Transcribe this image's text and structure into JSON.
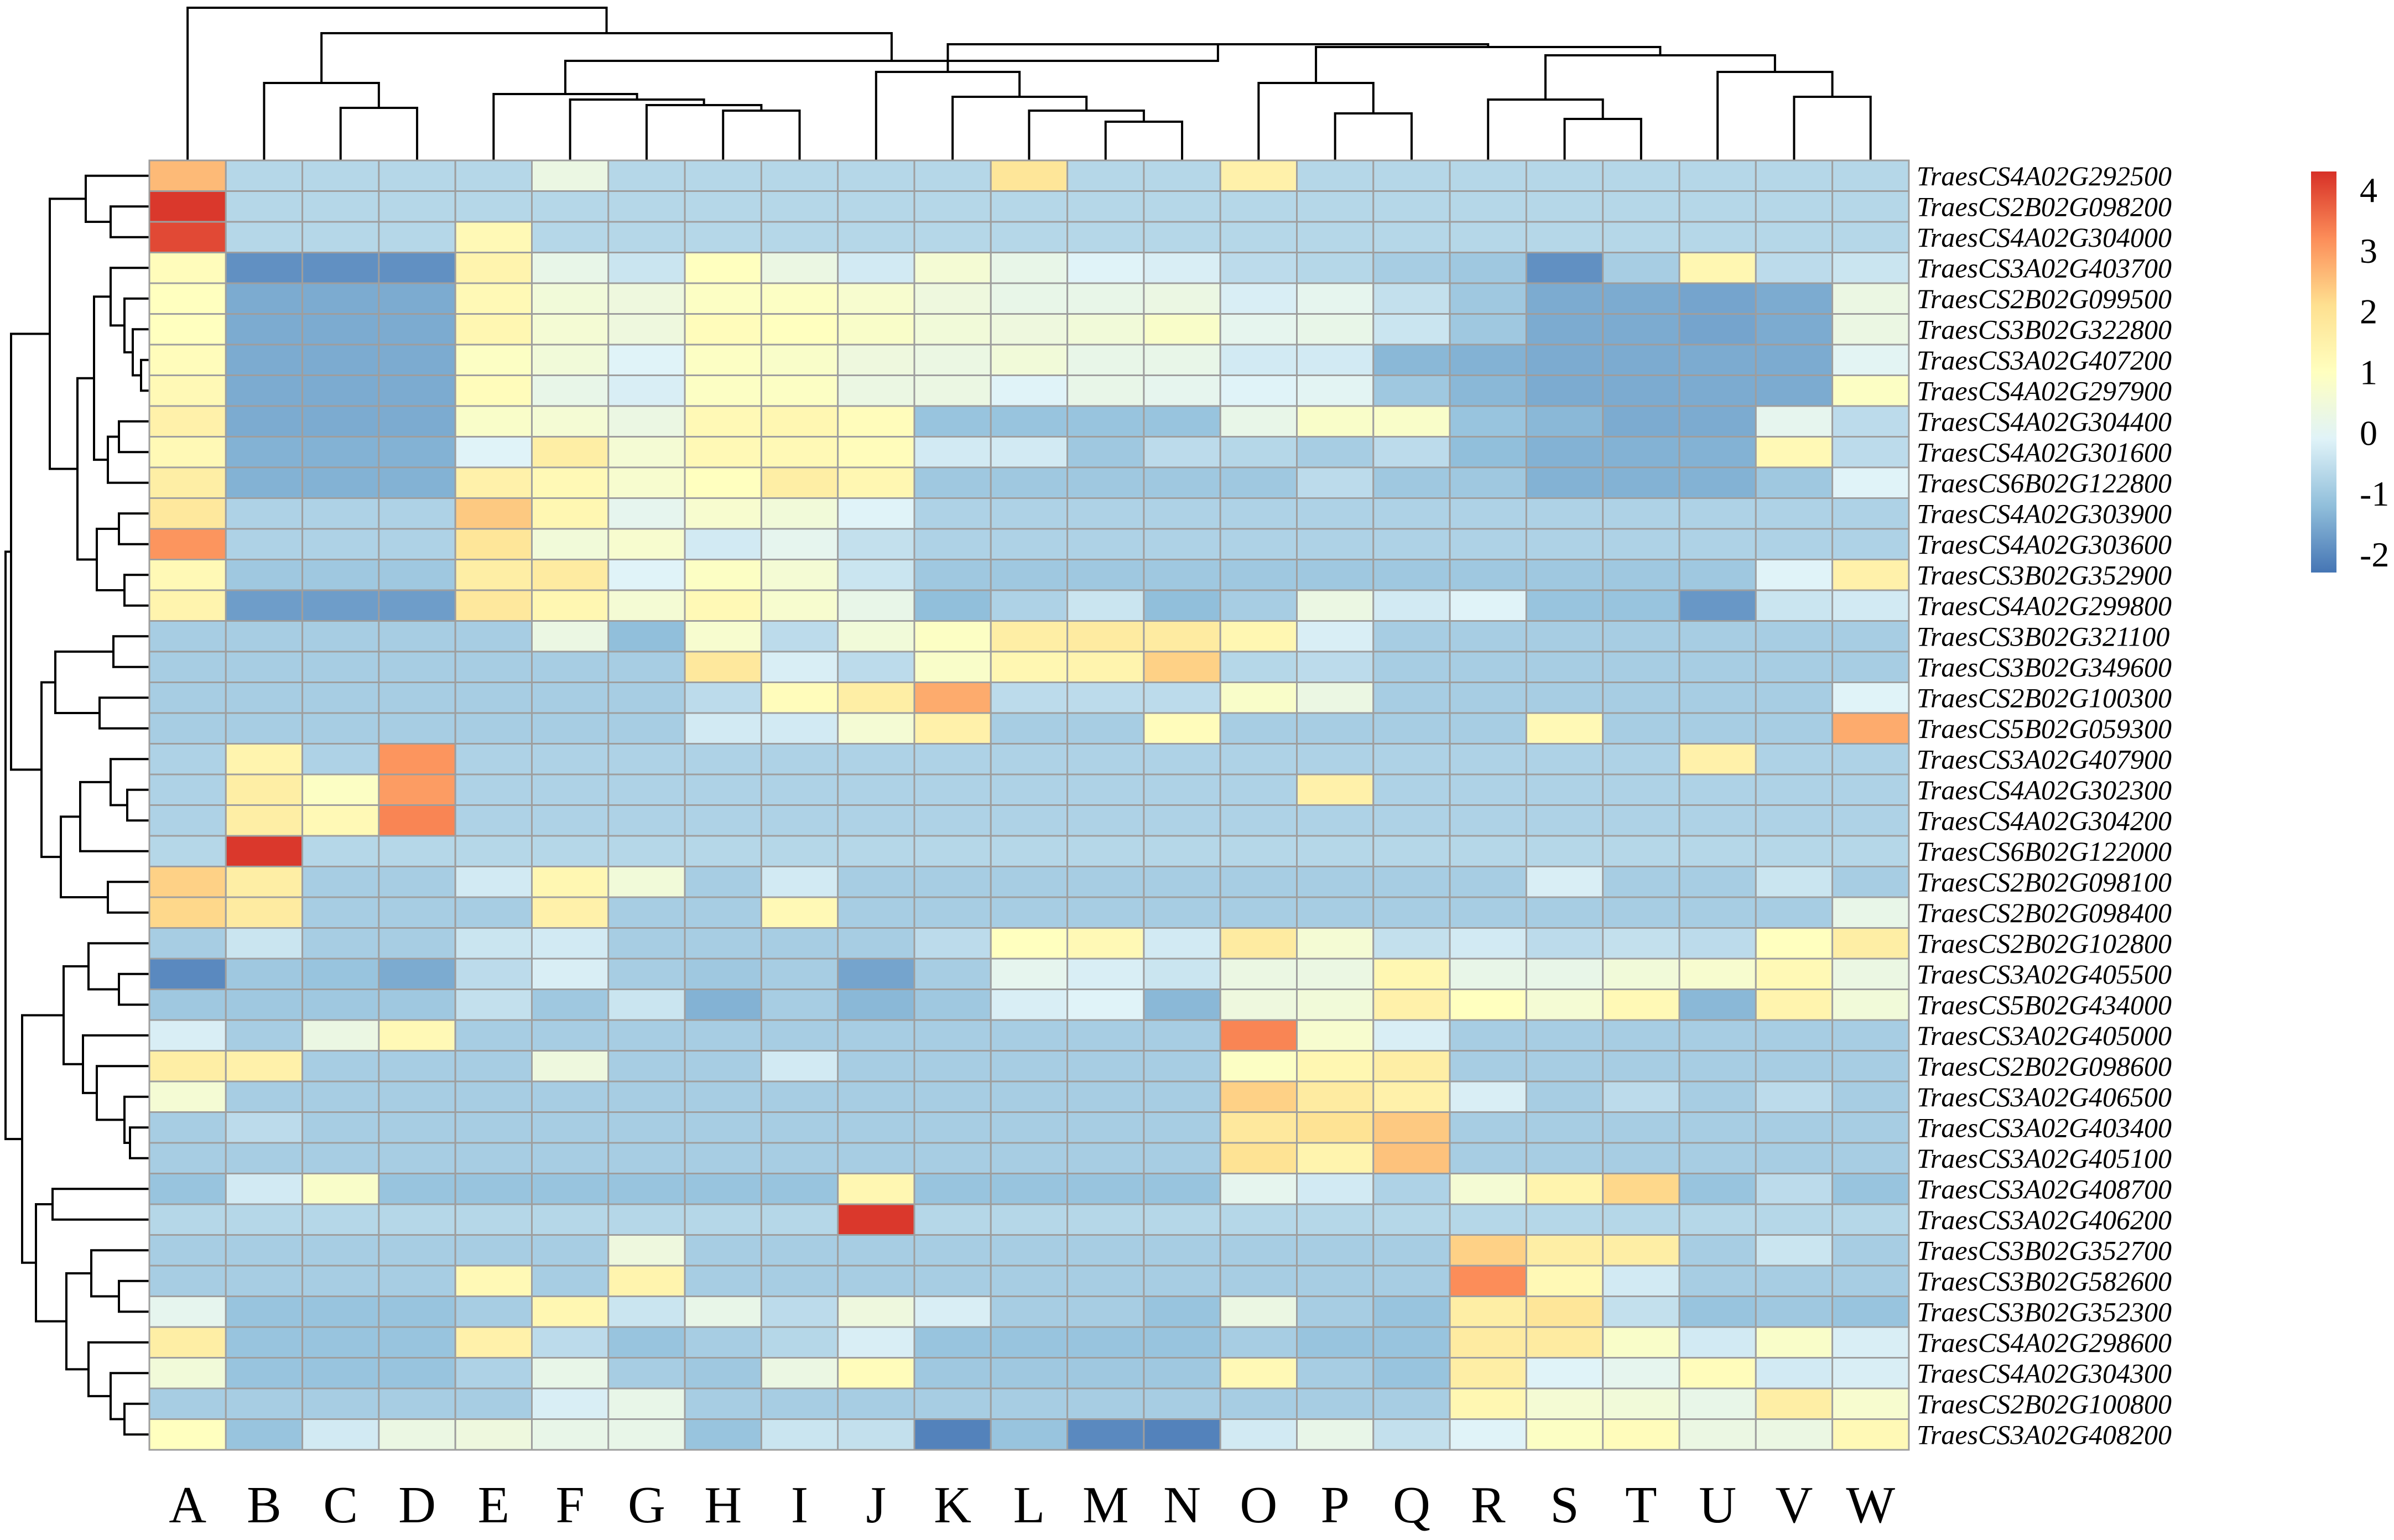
{
  "chart_data": {
    "type": "heatmap",
    "columns": [
      "A",
      "B",
      "C",
      "D",
      "E",
      "F",
      "G",
      "H",
      "I",
      "J",
      "K",
      "L",
      "M",
      "N",
      "O",
      "P",
      "Q",
      "R",
      "S",
      "T",
      "U",
      "V",
      "W"
    ],
    "rows": [
      "TraesCS4A02G292500",
      "TraesCS2B02G098200",
      "TraesCS4A02G304000",
      "TraesCS3A02G403700",
      "TraesCS2B02G099500",
      "TraesCS3B02G322800",
      "TraesCS3A02G407200",
      "TraesCS4A02G297900",
      "TraesCS4A02G304400",
      "TraesCS4A02G301600",
      "TraesCS6B02G122800",
      "TraesCS4A02G303900",
      "TraesCS4A02G303600",
      "TraesCS3B02G352900",
      "TraesCS4A02G299800",
      "TraesCS3B02G321100",
      "TraesCS3B02G349600",
      "TraesCS2B02G100300",
      "TraesCS5B02G059300",
      "TraesCS3A02G407900",
      "TraesCS4A02G302300",
      "TraesCS4A02G304200",
      "TraesCS6B02G122000",
      "TraesCS2B02G098100",
      "TraesCS2B02G098400",
      "TraesCS2B02G102800",
      "TraesCS3A02G405500",
      "TraesCS5B02G434000",
      "TraesCS3A02G405000",
      "TraesCS2B02G098600",
      "TraesCS3A02G406500",
      "TraesCS3A02G403400",
      "TraesCS3A02G405100",
      "TraesCS3A02G408700",
      "TraesCS3A02G406200",
      "TraesCS3B02G352700",
      "TraesCS3B02G582600",
      "TraesCS3B02G352300",
      "TraesCS4A02G298600",
      "TraesCS4A02G304300",
      "TraesCS2B02G100800",
      "TraesCS3A02G408200"
    ],
    "values": [
      [
        2.6,
        -0.7,
        -0.7,
        -0.7,
        -0.7,
        0.3,
        -0.7,
        -0.7,
        -0.7,
        -0.7,
        -0.7,
        1.9,
        -0.7,
        -0.7,
        1.5,
        -0.7,
        -0.7,
        -0.7,
        -0.7,
        -0.7,
        -0.7,
        -0.7,
        -0.7
      ],
      [
        4.2,
        -0.7,
        -0.7,
        -0.7,
        -0.7,
        -0.7,
        -0.7,
        -0.7,
        -0.7,
        -0.7,
        -0.7,
        -0.7,
        -0.7,
        -0.7,
        -0.7,
        -0.7,
        -0.7,
        -0.7,
        -0.7,
        -0.7,
        -0.7,
        -0.7,
        -0.7
      ],
      [
        4.0,
        -0.7,
        -0.7,
        -0.7,
        1.2,
        -0.7,
        -0.7,
        -0.7,
        -0.7,
        -0.7,
        -0.7,
        -0.7,
        -0.7,
        -0.7,
        -0.7,
        -0.7,
        -0.7,
        -0.7,
        -0.7,
        -0.7,
        -0.7,
        -0.7,
        -0.7
      ],
      [
        1.1,
        -1.9,
        -1.9,
        -1.9,
        1.4,
        0.2,
        -0.4,
        1.0,
        0.3,
        -0.3,
        0.6,
        0.2,
        -0.1,
        -0.2,
        -0.6,
        -0.7,
        -0.9,
        -1.0,
        -1.9,
        -0.9,
        1.3,
        -0.6,
        -0.4
      ],
      [
        1.0,
        -1.5,
        -1.5,
        -1.5,
        1.2,
        0.5,
        0.4,
        0.9,
        0.9,
        0.7,
        0.4,
        0.2,
        0.2,
        0.3,
        -0.2,
        0.1,
        -0.5,
        -1.0,
        -1.5,
        -1.5,
        -1.6,
        -1.5,
        0.3
      ],
      [
        1.0,
        -1.5,
        -1.5,
        -1.5,
        1.3,
        0.6,
        0.4,
        1.1,
        1.0,
        0.8,
        0.5,
        0.4,
        0.5,
        0.8,
        0.1,
        0.2,
        -0.4,
        -1.0,
        -1.5,
        -1.5,
        -1.6,
        -1.5,
        0.3
      ],
      [
        1.1,
        -1.5,
        -1.5,
        -1.5,
        0.9,
        0.5,
        -0.1,
        0.9,
        0.8,
        0.4,
        0.3,
        0.5,
        0.2,
        0.2,
        -0.3,
        -0.3,
        -1.3,
        -1.4,
        -1.5,
        -1.5,
        -1.5,
        -1.5,
        0.0
      ],
      [
        1.2,
        -1.5,
        -1.5,
        -1.5,
        1.1,
        0.2,
        -0.2,
        0.9,
        0.9,
        0.3,
        0.3,
        -0.1,
        0.2,
        0.1,
        -0.1,
        0.0,
        -1.0,
        -1.3,
        -1.5,
        -1.5,
        -1.5,
        -1.5,
        0.9
      ],
      [
        1.5,
        -1.5,
        -1.5,
        -1.5,
        0.8,
        0.6,
        0.3,
        1.2,
        1.3,
        1.1,
        -1.1,
        -1.1,
        -1.1,
        -1.1,
        0.2,
        0.8,
        0.8,
        -1.1,
        -1.3,
        -1.5,
        -1.5,
        0.1,
        -0.6
      ],
      [
        1.2,
        -1.4,
        -1.4,
        -1.4,
        -0.1,
        1.6,
        0.6,
        1.2,
        1.2,
        1.1,
        -0.3,
        -0.3,
        -1.0,
        -0.6,
        -0.7,
        -0.9,
        -0.6,
        -1.2,
        -1.4,
        -1.4,
        -1.4,
        1.2,
        -0.6
      ],
      [
        1.6,
        -1.4,
        -1.4,
        -1.4,
        1.5,
        1.2,
        0.7,
        1.0,
        1.6,
        1.3,
        -1.0,
        -1.0,
        -1.0,
        -1.0,
        -1.0,
        -0.6,
        -1.0,
        -1.0,
        -1.4,
        -1.4,
        -1.4,
        -1.0,
        -0.1
      ],
      [
        1.8,
        -0.8,
        -0.8,
        -0.8,
        2.4,
        1.3,
        0.1,
        0.7,
        0.5,
        -0.1,
        -0.8,
        -0.8,
        -0.8,
        -0.8,
        -0.8,
        -0.8,
        -0.8,
        -0.8,
        -0.8,
        -0.8,
        -0.8,
        -0.8,
        -0.8
      ],
      [
        3.1,
        -0.8,
        -0.8,
        -0.8,
        1.9,
        0.5,
        0.7,
        -0.3,
        0.1,
        -0.5,
        -0.8,
        -0.8,
        -0.8,
        -0.8,
        -0.8,
        -0.8,
        -0.8,
        -0.8,
        -0.8,
        -0.8,
        -0.8,
        -0.8,
        -0.8
      ],
      [
        1.2,
        -1.0,
        -1.0,
        -1.0,
        1.6,
        1.7,
        -0.1,
        0.9,
        0.6,
        -0.4,
        -1.0,
        -1.0,
        -1.0,
        -1.0,
        -1.0,
        -1.0,
        -1.0,
        -1.0,
        -1.0,
        -1.0,
        -1.0,
        -0.1,
        1.5
      ],
      [
        1.4,
        -1.7,
        -1.7,
        -1.7,
        1.8,
        1.3,
        0.6,
        1.2,
        0.7,
        0.2,
        -1.2,
        -0.8,
        -0.4,
        -1.2,
        -0.9,
        0.3,
        -0.3,
        -0.1,
        -1.1,
        -1.1,
        -1.8,
        -0.4,
        -0.3
      ],
      [
        -0.9,
        -0.9,
        -0.9,
        -0.9,
        -0.9,
        0.3,
        -1.2,
        0.7,
        -0.6,
        0.5,
        0.9,
        1.6,
        1.7,
        1.7,
        1.3,
        -0.2,
        -0.9,
        -0.9,
        -0.9,
        -0.9,
        -0.9,
        -0.9,
        -0.9
      ],
      [
        -0.9,
        -0.9,
        -0.9,
        -0.9,
        -0.9,
        -0.9,
        -0.9,
        1.8,
        -0.2,
        -0.6,
        0.8,
        1.3,
        1.4,
        2.3,
        -0.7,
        -0.6,
        -0.9,
        -0.9,
        -0.9,
        -0.9,
        -0.9,
        -0.9,
        -0.9
      ],
      [
        -0.9,
        -0.9,
        -0.9,
        -0.9,
        -0.9,
        -0.9,
        -0.9,
        -0.6,
        1.1,
        1.6,
        2.8,
        -0.6,
        -0.6,
        -0.6,
        0.8,
        0.3,
        -0.9,
        -0.9,
        -0.9,
        -0.9,
        -0.9,
        -0.9,
        -0.1
      ],
      [
        -0.9,
        -0.9,
        -0.9,
        -0.9,
        -0.9,
        -0.9,
        -0.9,
        -0.3,
        -0.3,
        0.6,
        1.5,
        -0.9,
        -0.9,
        1.1,
        -0.9,
        -0.9,
        -0.9,
        -0.9,
        1.2,
        -0.9,
        -0.9,
        -0.9,
        2.8
      ],
      [
        -0.8,
        1.4,
        -0.8,
        3.1,
        -0.8,
        -0.8,
        -0.8,
        -0.8,
        -0.8,
        -0.8,
        -0.8,
        -0.8,
        -0.8,
        -0.8,
        -0.8,
        -0.8,
        -0.8,
        -0.8,
        -0.8,
        -0.8,
        1.5,
        -0.8,
        -0.8
      ],
      [
        -0.8,
        1.6,
        0.9,
        3.0,
        -0.8,
        -0.8,
        -0.8,
        -0.8,
        -0.8,
        -0.8,
        -0.8,
        -0.8,
        -0.8,
        -0.8,
        -0.8,
        1.5,
        -0.8,
        -0.8,
        -0.8,
        -0.8,
        -0.8,
        -0.8,
        -0.8
      ],
      [
        -0.8,
        1.6,
        1.2,
        3.3,
        -0.8,
        -0.8,
        -0.8,
        -0.8,
        -0.8,
        -0.8,
        -0.8,
        -0.8,
        -0.8,
        -0.8,
        -0.8,
        -0.8,
        -0.8,
        -0.8,
        -0.8,
        -0.8,
        -0.8,
        -0.8,
        -0.8
      ],
      [
        -0.7,
        4.2,
        -0.7,
        -0.7,
        -0.7,
        -0.7,
        -0.7,
        -0.7,
        -0.7,
        -0.7,
        -0.7,
        -0.7,
        -0.7,
        -0.7,
        -0.7,
        -0.7,
        -0.7,
        -0.7,
        -0.7,
        -0.7,
        -0.7,
        -0.7,
        -0.7
      ],
      [
        2.3,
        1.6,
        -0.9,
        -0.9,
        -0.3,
        1.3,
        0.5,
        -0.9,
        -0.3,
        -0.9,
        -0.9,
        -0.9,
        -0.9,
        -0.9,
        -0.9,
        -0.9,
        -0.9,
        -0.9,
        -0.2,
        -0.9,
        -0.9,
        -0.4,
        -0.9
      ],
      [
        2.2,
        1.7,
        -0.9,
        -0.9,
        -0.9,
        1.5,
        -0.9,
        -0.9,
        1.2,
        -0.9,
        -0.9,
        -0.9,
        -0.9,
        -0.9,
        -0.9,
        -0.9,
        -0.9,
        -0.9,
        -0.9,
        -0.9,
        -0.9,
        -0.9,
        0.2
      ],
      [
        -0.9,
        -0.4,
        -0.9,
        -0.9,
        -0.4,
        -0.3,
        -0.9,
        -0.9,
        -0.9,
        -0.9,
        -0.6,
        1.0,
        1.2,
        -0.3,
        1.7,
        0.6,
        -0.5,
        -0.3,
        -0.6,
        -0.5,
        -0.6,
        1.0,
        1.6
      ],
      [
        -2.0,
        -1.0,
        -1.1,
        -1.5,
        -0.6,
        -0.2,
        -0.9,
        -1.0,
        -0.9,
        -1.6,
        -0.9,
        0.1,
        -0.2,
        -0.4,
        0.3,
        0.3,
        1.3,
        0.2,
        0.2,
        0.5,
        0.7,
        1.2,
        0.3
      ],
      [
        -1.0,
        -1.0,
        -1.0,
        -1.0,
        -0.5,
        -1.0,
        -0.4,
        -1.4,
        -0.9,
        -1.3,
        -1.0,
        -0.2,
        -0.1,
        -1.3,
        0.4,
        0.5,
        1.5,
        1.0,
        0.6,
        1.2,
        -1.3,
        1.4,
        0.5
      ],
      [
        -0.2,
        -0.9,
        0.3,
        1.2,
        -0.9,
        -0.9,
        -0.9,
        -0.9,
        -0.9,
        -0.9,
        -0.9,
        -0.9,
        -0.9,
        -0.9,
        3.3,
        0.7,
        -0.2,
        -0.9,
        -0.9,
        -0.9,
        -0.9,
        -0.9,
        -0.9
      ],
      [
        1.6,
        1.5,
        -0.9,
        -0.9,
        -0.9,
        0.4,
        -0.9,
        -0.9,
        -0.3,
        -0.9,
        -0.9,
        -0.9,
        -0.9,
        -0.9,
        0.9,
        1.3,
        1.6,
        -0.9,
        -0.9,
        -0.9,
        -0.9,
        -0.9,
        -0.9
      ],
      [
        0.6,
        -0.9,
        -0.9,
        -0.9,
        -0.9,
        -0.9,
        -0.9,
        -0.9,
        -0.9,
        -0.9,
        -0.9,
        -0.9,
        -0.9,
        -0.9,
        2.3,
        1.7,
        1.5,
        -0.2,
        -0.9,
        -0.6,
        -0.9,
        -0.6,
        -0.9
      ],
      [
        -0.9,
        -0.6,
        -0.9,
        -0.9,
        -0.9,
        -0.9,
        -0.9,
        -0.9,
        -0.9,
        -0.9,
        -0.9,
        -0.9,
        -0.9,
        -0.9,
        1.8,
        2.0,
        2.4,
        -0.9,
        -0.9,
        -0.9,
        -0.9,
        -0.9,
        -0.9
      ],
      [
        -0.9,
        -0.9,
        -0.9,
        -0.9,
        -0.9,
        -0.9,
        -0.9,
        -0.9,
        -0.9,
        -0.9,
        -0.9,
        -0.9,
        -0.9,
        -0.9,
        2.0,
        1.4,
        2.5,
        -0.9,
        -0.9,
        -0.9,
        -0.9,
        -0.9,
        -0.9
      ],
      [
        -1.1,
        -0.3,
        0.8,
        -1.1,
        -1.1,
        -1.1,
        -1.1,
        -1.1,
        -1.1,
        1.3,
        -1.1,
        -1.1,
        -1.1,
        -1.1,
        0.1,
        -0.3,
        -0.8,
        0.6,
        1.4,
        2.2,
        -1.1,
        -0.6,
        -1.1
      ],
      [
        -0.7,
        -0.7,
        -0.7,
        -0.7,
        -0.7,
        -0.7,
        -0.7,
        -0.7,
        -0.7,
        4.2,
        -0.7,
        -0.7,
        -0.7,
        -0.7,
        -0.7,
        -0.7,
        -0.7,
        -0.7,
        -0.7,
        -0.7,
        -0.7,
        -0.7,
        -0.7
      ],
      [
        -0.9,
        -0.9,
        -0.9,
        -0.9,
        -0.9,
        -0.9,
        0.4,
        -0.9,
        -0.9,
        -0.9,
        -0.9,
        -0.9,
        -0.9,
        -0.9,
        -0.9,
        -0.9,
        -0.9,
        2.3,
        1.6,
        1.6,
        -0.9,
        -0.4,
        -0.9
      ],
      [
        -0.9,
        -0.9,
        -0.9,
        -0.9,
        1.2,
        -0.9,
        1.4,
        -0.9,
        -0.9,
        -0.9,
        -0.9,
        -0.9,
        -0.9,
        -0.9,
        -0.9,
        -0.9,
        -0.9,
        3.2,
        1.2,
        -0.3,
        -0.9,
        -0.9,
        -0.9
      ],
      [
        0.1,
        -1.1,
        -1.1,
        -1.1,
        -0.9,
        1.3,
        -0.4,
        0.2,
        -0.6,
        0.4,
        -0.2,
        -0.9,
        -0.9,
        -1.1,
        0.3,
        -0.9,
        -1.1,
        1.6,
        1.9,
        -0.5,
        -1.1,
        -1.0,
        -1.1
      ],
      [
        1.6,
        -1.1,
        -1.1,
        -1.1,
        1.5,
        -0.6,
        -1.1,
        -0.9,
        -0.7,
        -0.2,
        -1.1,
        -1.1,
        -1.1,
        -1.1,
        -0.9,
        -1.1,
        -1.1,
        1.7,
        1.7,
        0.8,
        -0.3,
        0.8,
        -0.2
      ],
      [
        0.5,
        -1.1,
        -1.1,
        -1.1,
        -0.8,
        0.2,
        -0.9,
        -1.0,
        0.3,
        1.1,
        -1.0,
        -1.0,
        -1.0,
        -1.0,
        1.2,
        -0.9,
        -1.1,
        1.6,
        -0.1,
        0.1,
        1.1,
        -0.3,
        -0.2
      ],
      [
        -0.9,
        -0.9,
        -0.9,
        -0.9,
        -0.9,
        -0.2,
        0.2,
        -0.9,
        -0.9,
        -0.9,
        -0.9,
        -0.9,
        -0.9,
        -0.9,
        -0.9,
        -0.9,
        -0.9,
        1.3,
        0.6,
        0.5,
        0.2,
        1.6,
        0.7
      ],
      [
        1.0,
        -1.1,
        -0.3,
        0.3,
        0.4,
        0.2,
        0.2,
        -1.1,
        -0.4,
        -0.5,
        -2.1,
        -1.1,
        -2.0,
        -2.1,
        -0.3,
        0.2,
        -0.5,
        -0.1,
        0.9,
        1.1,
        0.3,
        0.3,
        1.2
      ]
    ],
    "legend": {
      "ticks": [
        "4",
        "3",
        "2",
        "1",
        "0",
        "-1",
        "-2"
      ],
      "min": -2.3,
      "max": 4.3,
      "colors": [
        "#4575b4",
        "#91bfdb",
        "#e0f3f8",
        "#ffffbf",
        "#fee090",
        "#fc8d59",
        "#d73027"
      ]
    },
    "row_dendrogram_order": "clustered",
    "column_dendrogram_order": "clustered"
  }
}
